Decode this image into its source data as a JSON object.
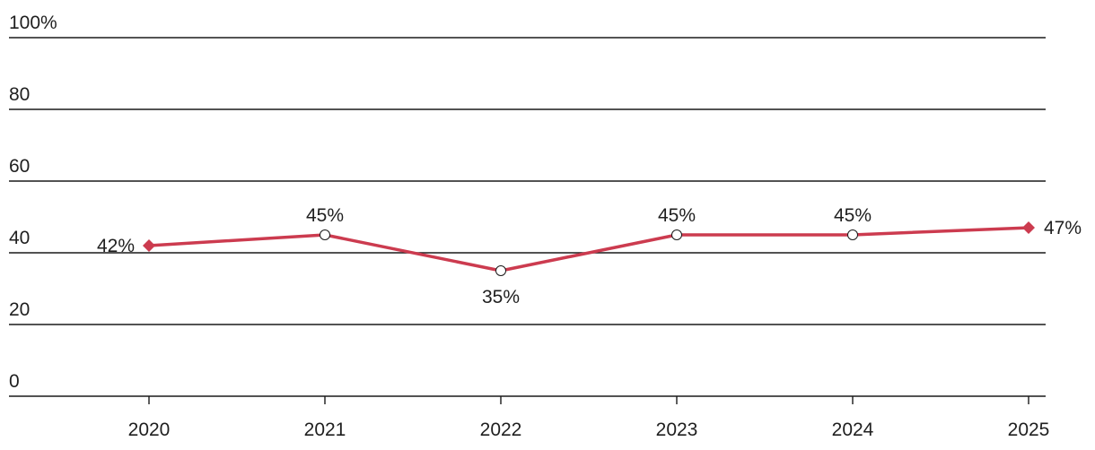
{
  "chart_data": {
    "type": "line",
    "title": "",
    "xlabel": "",
    "ylabel": "",
    "categories": [
      "2020",
      "2021",
      "2022",
      "2023",
      "2024",
      "2025"
    ],
    "series": [
      {
        "values": [
          42,
          45,
          35,
          45,
          45,
          47
        ],
        "labels": [
          "42%",
          "45%",
          "35%",
          "45%",
          "45%",
          "47%"
        ],
        "color": "#cc3b4f"
      }
    ],
    "yticks": [
      {
        "value": 0,
        "label": "0"
      },
      {
        "value": 20,
        "label": "20"
      },
      {
        "value": 40,
        "label": "40"
      },
      {
        "value": 60,
        "label": "60"
      },
      {
        "value": 80,
        "label": "80"
      },
      {
        "value": 100,
        "label": "100%"
      }
    ],
    "ylim": [
      0,
      100
    ],
    "grid": true,
    "legend": "none",
    "marker_style": "diamond endpoints, hollow circle interior points"
  }
}
